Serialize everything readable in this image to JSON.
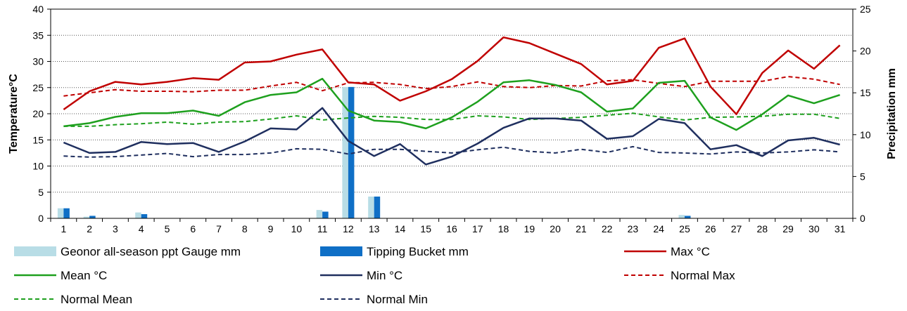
{
  "chart_data": {
    "type": "bar+line",
    "ylabel_left": "Temperature°C",
    "ylabel_right": "Precipitation mm",
    "ylim_left": [
      0,
      40
    ],
    "ylim_right": [
      0,
      25
    ],
    "yticks_left": [
      "0",
      "5",
      "10",
      "15",
      "20",
      "25",
      "30",
      "35",
      "40"
    ],
    "yticks_right": [
      "0",
      "5",
      "10",
      "15",
      "20",
      "25"
    ],
    "grid": "horizontal dotted, left axis",
    "categories": [
      "1",
      "2",
      "3",
      "4",
      "5",
      "6",
      "7",
      "8",
      "9",
      "10",
      "11",
      "12",
      "13",
      "14",
      "15",
      "16",
      "17",
      "18",
      "19",
      "20",
      "21",
      "22",
      "23",
      "24",
      "25",
      "26",
      "27",
      "28",
      "29",
      "30",
      "31"
    ],
    "bar_series": [
      {
        "name": "Geonor all-season ppt Gauge mm",
        "color": "#b8dde6",
        "axis": "right",
        "values": [
          1.2,
          0.2,
          0,
          0.7,
          0,
          0,
          0,
          0,
          0,
          0,
          1.0,
          15.7,
          2.6,
          0,
          0,
          0,
          0,
          0,
          0,
          0,
          0,
          0,
          0,
          0,
          0.4,
          0,
          0,
          0,
          0,
          0,
          0
        ]
      },
      {
        "name": "Tipping Bucket mm",
        "color": "#0f6fc6",
        "axis": "right",
        "values": [
          1.2,
          0.3,
          0,
          0.5,
          0,
          0,
          0,
          0,
          0,
          0,
          0.8,
          15.7,
          2.6,
          0,
          0,
          0,
          0,
          0,
          0,
          0,
          0,
          0,
          0,
          0,
          0.3,
          0,
          0,
          0,
          0,
          0,
          0
        ]
      }
    ],
    "line_series": [
      {
        "name": "Max °C",
        "color": "#c00000",
        "dashed": false,
        "axis": "left",
        "values": [
          20.8,
          24.3,
          26.1,
          25.6,
          26.1,
          26.8,
          26.5,
          29.8,
          30.0,
          31.3,
          32.3,
          26.0,
          25.6,
          22.5,
          24.3,
          26.6,
          30.1,
          34.6,
          33.5,
          31.5,
          29.5,
          25.6,
          26.3,
          32.6,
          34.4,
          25.2,
          19.9,
          27.8,
          32.1,
          28.6,
          33.1
        ]
      },
      {
        "name": "Mean °C",
        "color": "#1ea01e",
        "dashed": false,
        "axis": "left",
        "values": [
          17.6,
          18.2,
          19.4,
          20.1,
          20.1,
          20.6,
          19.6,
          22.2,
          23.6,
          24.1,
          26.7,
          20.6,
          18.7,
          18.4,
          17.2,
          19.3,
          22.3,
          26.0,
          26.4,
          25.5,
          24.1,
          20.4,
          21.0,
          25.9,
          26.3,
          19.3,
          16.9,
          19.9,
          23.5,
          22.0,
          23.6
        ]
      },
      {
        "name": "Min °C",
        "color": "#1f2f5f",
        "dashed": false,
        "axis": "left",
        "values": [
          14.5,
          12.5,
          12.7,
          14.6,
          14.2,
          14.4,
          12.7,
          14.7,
          17.2,
          17.0,
          21.1,
          14.8,
          11.9,
          14.2,
          10.3,
          11.8,
          14.3,
          17.3,
          19.1,
          19.1,
          18.7,
          15.2,
          15.7,
          19.0,
          18.2,
          13.2,
          14.0,
          11.9,
          14.9,
          15.4,
          14.1
        ]
      },
      {
        "name": "Normal Max",
        "color": "#c00000",
        "dashed": true,
        "axis": "left",
        "values": [
          23.4,
          24.0,
          24.6,
          24.3,
          24.3,
          24.2,
          24.5,
          24.5,
          25.3,
          26.0,
          24.4,
          25.9,
          26.0,
          25.6,
          24.8,
          25.2,
          26.1,
          25.2,
          25.0,
          25.4,
          25.3,
          26.3,
          26.5,
          25.8,
          25.2,
          26.2,
          26.2,
          26.2,
          27.1,
          26.6,
          25.6
        ]
      },
      {
        "name": "Normal Mean",
        "color": "#1ea01e",
        "dashed": true,
        "axis": "left",
        "values": [
          17.6,
          17.6,
          17.9,
          18.1,
          18.4,
          18.0,
          18.4,
          18.5,
          19.0,
          19.6,
          18.8,
          19.2,
          19.5,
          19.3,
          18.9,
          18.9,
          19.6,
          19.4,
          18.9,
          19.1,
          19.3,
          19.7,
          20.1,
          19.4,
          18.8,
          19.3,
          19.4,
          19.5,
          19.9,
          19.9,
          19.1
        ]
      },
      {
        "name": "Normal Min",
        "color": "#1f2f5f",
        "dashed": true,
        "axis": "left",
        "values": [
          11.9,
          11.7,
          11.8,
          12.1,
          12.4,
          11.8,
          12.2,
          12.2,
          12.5,
          13.3,
          13.2,
          12.3,
          13.2,
          13.2,
          12.8,
          12.5,
          13.1,
          13.6,
          12.8,
          12.5,
          13.2,
          12.6,
          13.7,
          12.6,
          12.5,
          12.3,
          12.7,
          12.5,
          12.7,
          13.1,
          12.7
        ]
      }
    ],
    "legend": {
      "placement": "bottom",
      "rows": [
        [
          "Geonor all-season ppt Gauge mm",
          "Tipping Bucket mm",
          "Max °C"
        ],
        [
          "Mean °C",
          "Min °C",
          "Normal Max"
        ],
        [
          "Normal Mean",
          "Normal Min"
        ]
      ]
    }
  }
}
